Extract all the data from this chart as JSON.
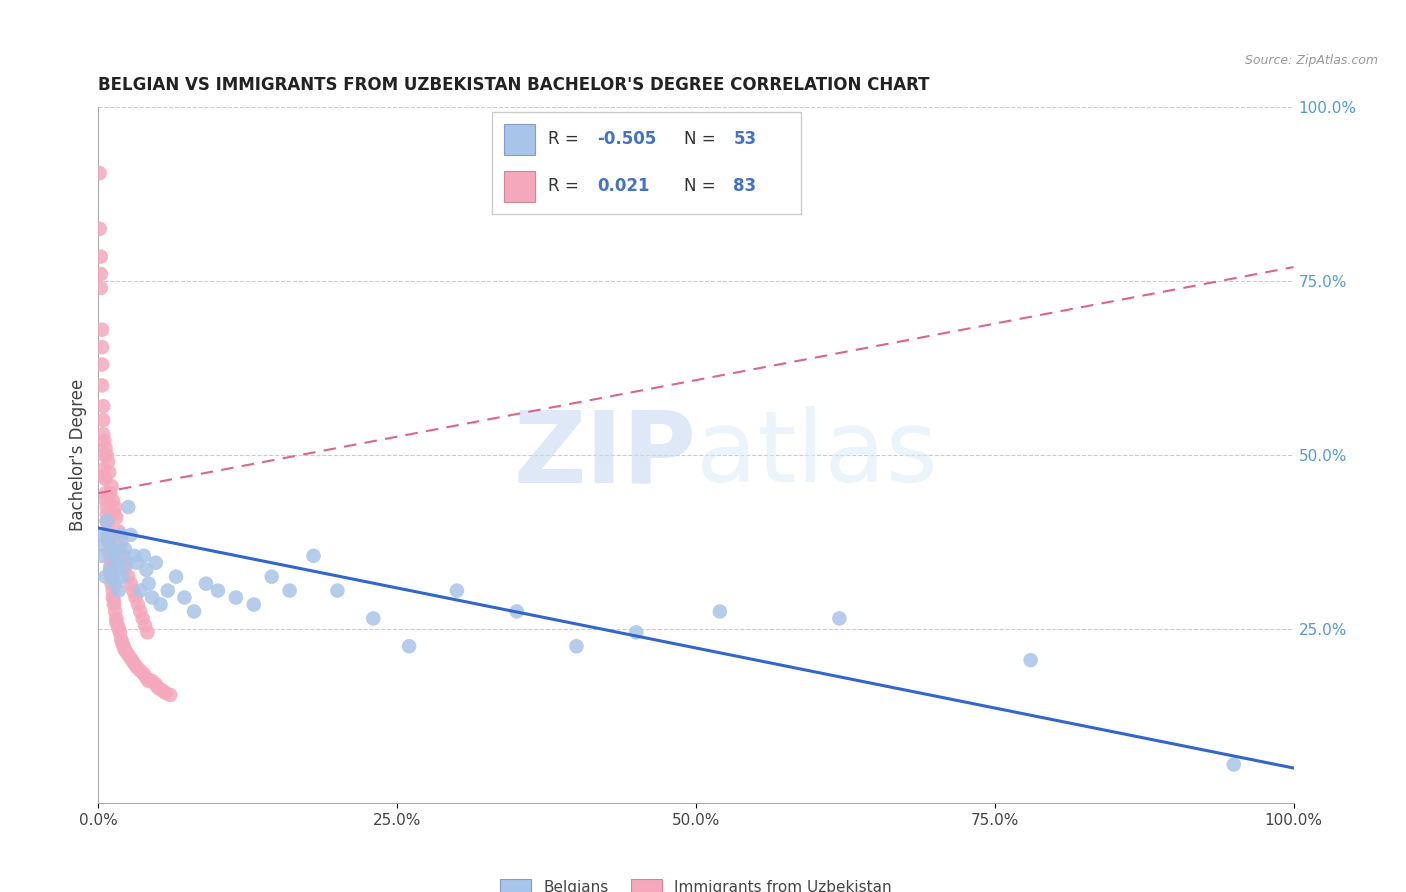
{
  "title": "BELGIAN VS IMMIGRANTS FROM UZBEKISTAN BACHELOR'S DEGREE CORRELATION CHART",
  "source": "Source: ZipAtlas.com",
  "ylabel": "Bachelor's Degree",
  "watermark_zip": "ZIP",
  "watermark_atlas": "atlas",
  "legend_blue_r": "-0.505",
  "legend_blue_n": "53",
  "legend_pink_r": "0.021",
  "legend_pink_n": "83",
  "blue_color": "#a8c4e8",
  "pink_color": "#f5a8bc",
  "line_blue_color": "#3366cc",
  "line_pink_color": "#dd6688",
  "right_axis_color": "#5599dd",
  "grid_color": "#cccccc",
  "background": "#ffffff",
  "blue_x": [
    0.002,
    0.003,
    0.005,
    0.006,
    0.007,
    0.008,
    0.009,
    0.01,
    0.011,
    0.012,
    0.013,
    0.014,
    0.015,
    0.016,
    0.017,
    0.018,
    0.019,
    0.02,
    0.022,
    0.023,
    0.025,
    0.027,
    0.03,
    0.032,
    0.035,
    0.038,
    0.04,
    0.042,
    0.045,
    0.048,
    0.052,
    0.058,
    0.065,
    0.072,
    0.08,
    0.09,
    0.1,
    0.115,
    0.13,
    0.145,
    0.16,
    0.18,
    0.2,
    0.23,
    0.26,
    0.3,
    0.35,
    0.4,
    0.45,
    0.52,
    0.62,
    0.78,
    0.95
  ],
  "blue_y": [
    0.385,
    0.355,
    0.37,
    0.325,
    0.405,
    0.385,
    0.375,
    0.335,
    0.365,
    0.325,
    0.355,
    0.315,
    0.345,
    0.335,
    0.305,
    0.365,
    0.385,
    0.325,
    0.365,
    0.345,
    0.425,
    0.385,
    0.355,
    0.345,
    0.305,
    0.355,
    0.335,
    0.315,
    0.295,
    0.345,
    0.285,
    0.305,
    0.325,
    0.295,
    0.275,
    0.315,
    0.305,
    0.295,
    0.285,
    0.325,
    0.305,
    0.355,
    0.305,
    0.265,
    0.225,
    0.305,
    0.275,
    0.225,
    0.245,
    0.275,
    0.265,
    0.205,
    0.055
  ],
  "pink_x": [
    0.001,
    0.001,
    0.002,
    0.002,
    0.002,
    0.003,
    0.003,
    0.003,
    0.003,
    0.004,
    0.004,
    0.004,
    0.005,
    0.005,
    0.005,
    0.005,
    0.006,
    0.006,
    0.006,
    0.007,
    0.007,
    0.007,
    0.008,
    0.008,
    0.009,
    0.009,
    0.01,
    0.01,
    0.01,
    0.011,
    0.011,
    0.012,
    0.012,
    0.013,
    0.013,
    0.014,
    0.015,
    0.015,
    0.016,
    0.017,
    0.018,
    0.019,
    0.02,
    0.021,
    0.022,
    0.024,
    0.026,
    0.028,
    0.03,
    0.032,
    0.035,
    0.038,
    0.04,
    0.042,
    0.045,
    0.048,
    0.05,
    0.053,
    0.056,
    0.06,
    0.01,
    0.012,
    0.014,
    0.008,
    0.009,
    0.011,
    0.006,
    0.007,
    0.013,
    0.015,
    0.017,
    0.019,
    0.021,
    0.023,
    0.025,
    0.027,
    0.029,
    0.031,
    0.033,
    0.035,
    0.037,
    0.039,
    0.041
  ],
  "pink_y": [
    0.905,
    0.825,
    0.785,
    0.76,
    0.74,
    0.68,
    0.655,
    0.63,
    0.6,
    0.57,
    0.55,
    0.53,
    0.52,
    0.5,
    0.48,
    0.47,
    0.465,
    0.445,
    0.435,
    0.425,
    0.415,
    0.405,
    0.4,
    0.38,
    0.375,
    0.36,
    0.35,
    0.34,
    0.33,
    0.325,
    0.315,
    0.305,
    0.295,
    0.29,
    0.285,
    0.275,
    0.265,
    0.26,
    0.255,
    0.25,
    0.245,
    0.235,
    0.23,
    0.225,
    0.22,
    0.215,
    0.21,
    0.205,
    0.2,
    0.195,
    0.19,
    0.185,
    0.18,
    0.175,
    0.175,
    0.17,
    0.165,
    0.162,
    0.158,
    0.155,
    0.445,
    0.435,
    0.425,
    0.49,
    0.475,
    0.455,
    0.51,
    0.5,
    0.415,
    0.41,
    0.39,
    0.375,
    0.355,
    0.34,
    0.325,
    0.315,
    0.305,
    0.295,
    0.285,
    0.275,
    0.265,
    0.255,
    0.245
  ],
  "xlim": [
    0.0,
    1.0
  ],
  "ylim": [
    0.0,
    1.0
  ],
  "blue_line_x0": 0.0,
  "blue_line_x1": 1.0,
  "blue_line_y0": 0.395,
  "blue_line_y1": 0.05,
  "pink_line_x0": 0.0,
  "pink_line_x1": 1.0,
  "pink_line_y0": 0.445,
  "pink_line_y1": 0.77,
  "xtick_vals": [
    0.0,
    0.25,
    0.5,
    0.75,
    1.0
  ],
  "xtick_labels": [
    "0.0%",
    "25.0%",
    "50.0%",
    "75.0%",
    "100.0%"
  ],
  "ytick_right_vals": [
    0.25,
    0.5,
    0.75,
    1.0
  ],
  "ytick_right_labels": [
    "25.0%",
    "50.0%",
    "75.0%",
    "100.0%"
  ]
}
